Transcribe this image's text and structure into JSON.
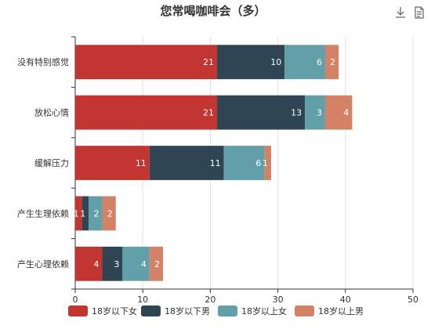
{
  "toolbar": {
    "save_icon": "download-icon",
    "data_view_icon": "data-view-icon"
  },
  "chart_data": {
    "type": "bar",
    "orientation": "horizontal",
    "stacked": true,
    "title": "您常喝咖啡会（多）",
    "categories": [
      "没有特别感觉",
      "放松心情",
      "缓解压力",
      "产生生理依赖",
      "产生心理依赖"
    ],
    "series": [
      {
        "name": "18岁以下女",
        "color": "#c23531",
        "values": [
          21,
          21,
          11,
          1,
          4
        ]
      },
      {
        "name": "18岁以下男",
        "color": "#2f4554",
        "values": [
          10,
          13,
          11,
          1,
          3
        ]
      },
      {
        "name": "18岁以上女",
        "color": "#61a0a8",
        "values": [
          6,
          3,
          6,
          2,
          4
        ]
      },
      {
        "name": "18岁以上男",
        "color": "#d48265",
        "values": [
          2,
          4,
          1,
          2,
          2
        ]
      }
    ],
    "xlim": [
      0,
      50
    ],
    "xticks": [
      0,
      10,
      20,
      30,
      40,
      50
    ],
    "grid": true,
    "legend_position": "bottom"
  }
}
